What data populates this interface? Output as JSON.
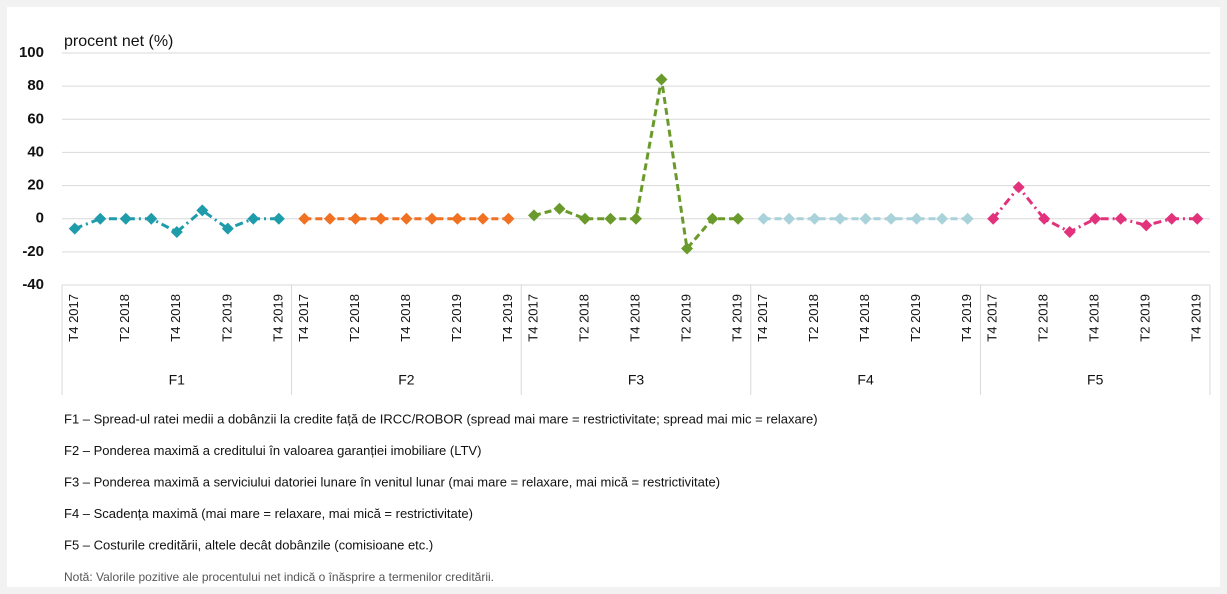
{
  "chart_data": {
    "type": "line",
    "ylabel": "procent net (%)",
    "categories": [
      "T4 2017",
      null,
      "T2 2018",
      null,
      "T4 2018",
      null,
      "T2 2019",
      null,
      "T4 2019"
    ],
    "series": [
      {
        "name": "F1",
        "color": "#1f9caa",
        "line_style": "dashdot",
        "values": [
          -6,
          0,
          0,
          0,
          -8,
          5,
          -6,
          0,
          0
        ]
      },
      {
        "name": "F2",
        "color": "#f07122",
        "line_style": "dashed",
        "values": [
          0,
          0,
          0,
          0,
          0,
          0,
          0,
          0,
          0
        ]
      },
      {
        "name": "F3",
        "color": "#6b9a2c",
        "line_style": "dashed",
        "values": [
          2,
          6,
          0,
          0,
          0,
          84,
          -18,
          0,
          0
        ]
      },
      {
        "name": "F4",
        "color": "#a9d2da",
        "line_style": "dashed",
        "values": [
          0,
          0,
          0,
          0,
          0,
          0,
          0,
          0,
          0
        ]
      },
      {
        "name": "F5",
        "color": "#e2327c",
        "line_style": "dashdot",
        "values": [
          0,
          19,
          0,
          -8,
          0,
          0,
          -4,
          0,
          0
        ]
      }
    ],
    "ylim": [
      -40,
      100
    ],
    "yticks": [
      -40,
      -20,
      0,
      20,
      40,
      60,
      80,
      100
    ],
    "grid": true,
    "notes": [
      "F1 – Spread-ul ratei medii a dobânzii  la credite față de IRCC/ROBOR (spread mai mare = restrictivitate; spread mai mic = relaxare)",
      "F2 – Ponderea maximă a creditului în valoarea garanției imobiliare (LTV)",
      "F3 – Ponderea maximă a serviciului datoriei lunare în venitul lunar  (mai mare = relaxare, mai mică = restrictivitate)",
      "F4 – Scadența maximă (mai mare = relaxare, mai mică = restrictivitate)",
      "F5 – Costurile creditării, altele decât dobânzile  (comisioane etc.)"
    ],
    "footnote": "Notă: Valorile pozitive ale procentului net indică o înăsprire a termenilor creditării."
  }
}
